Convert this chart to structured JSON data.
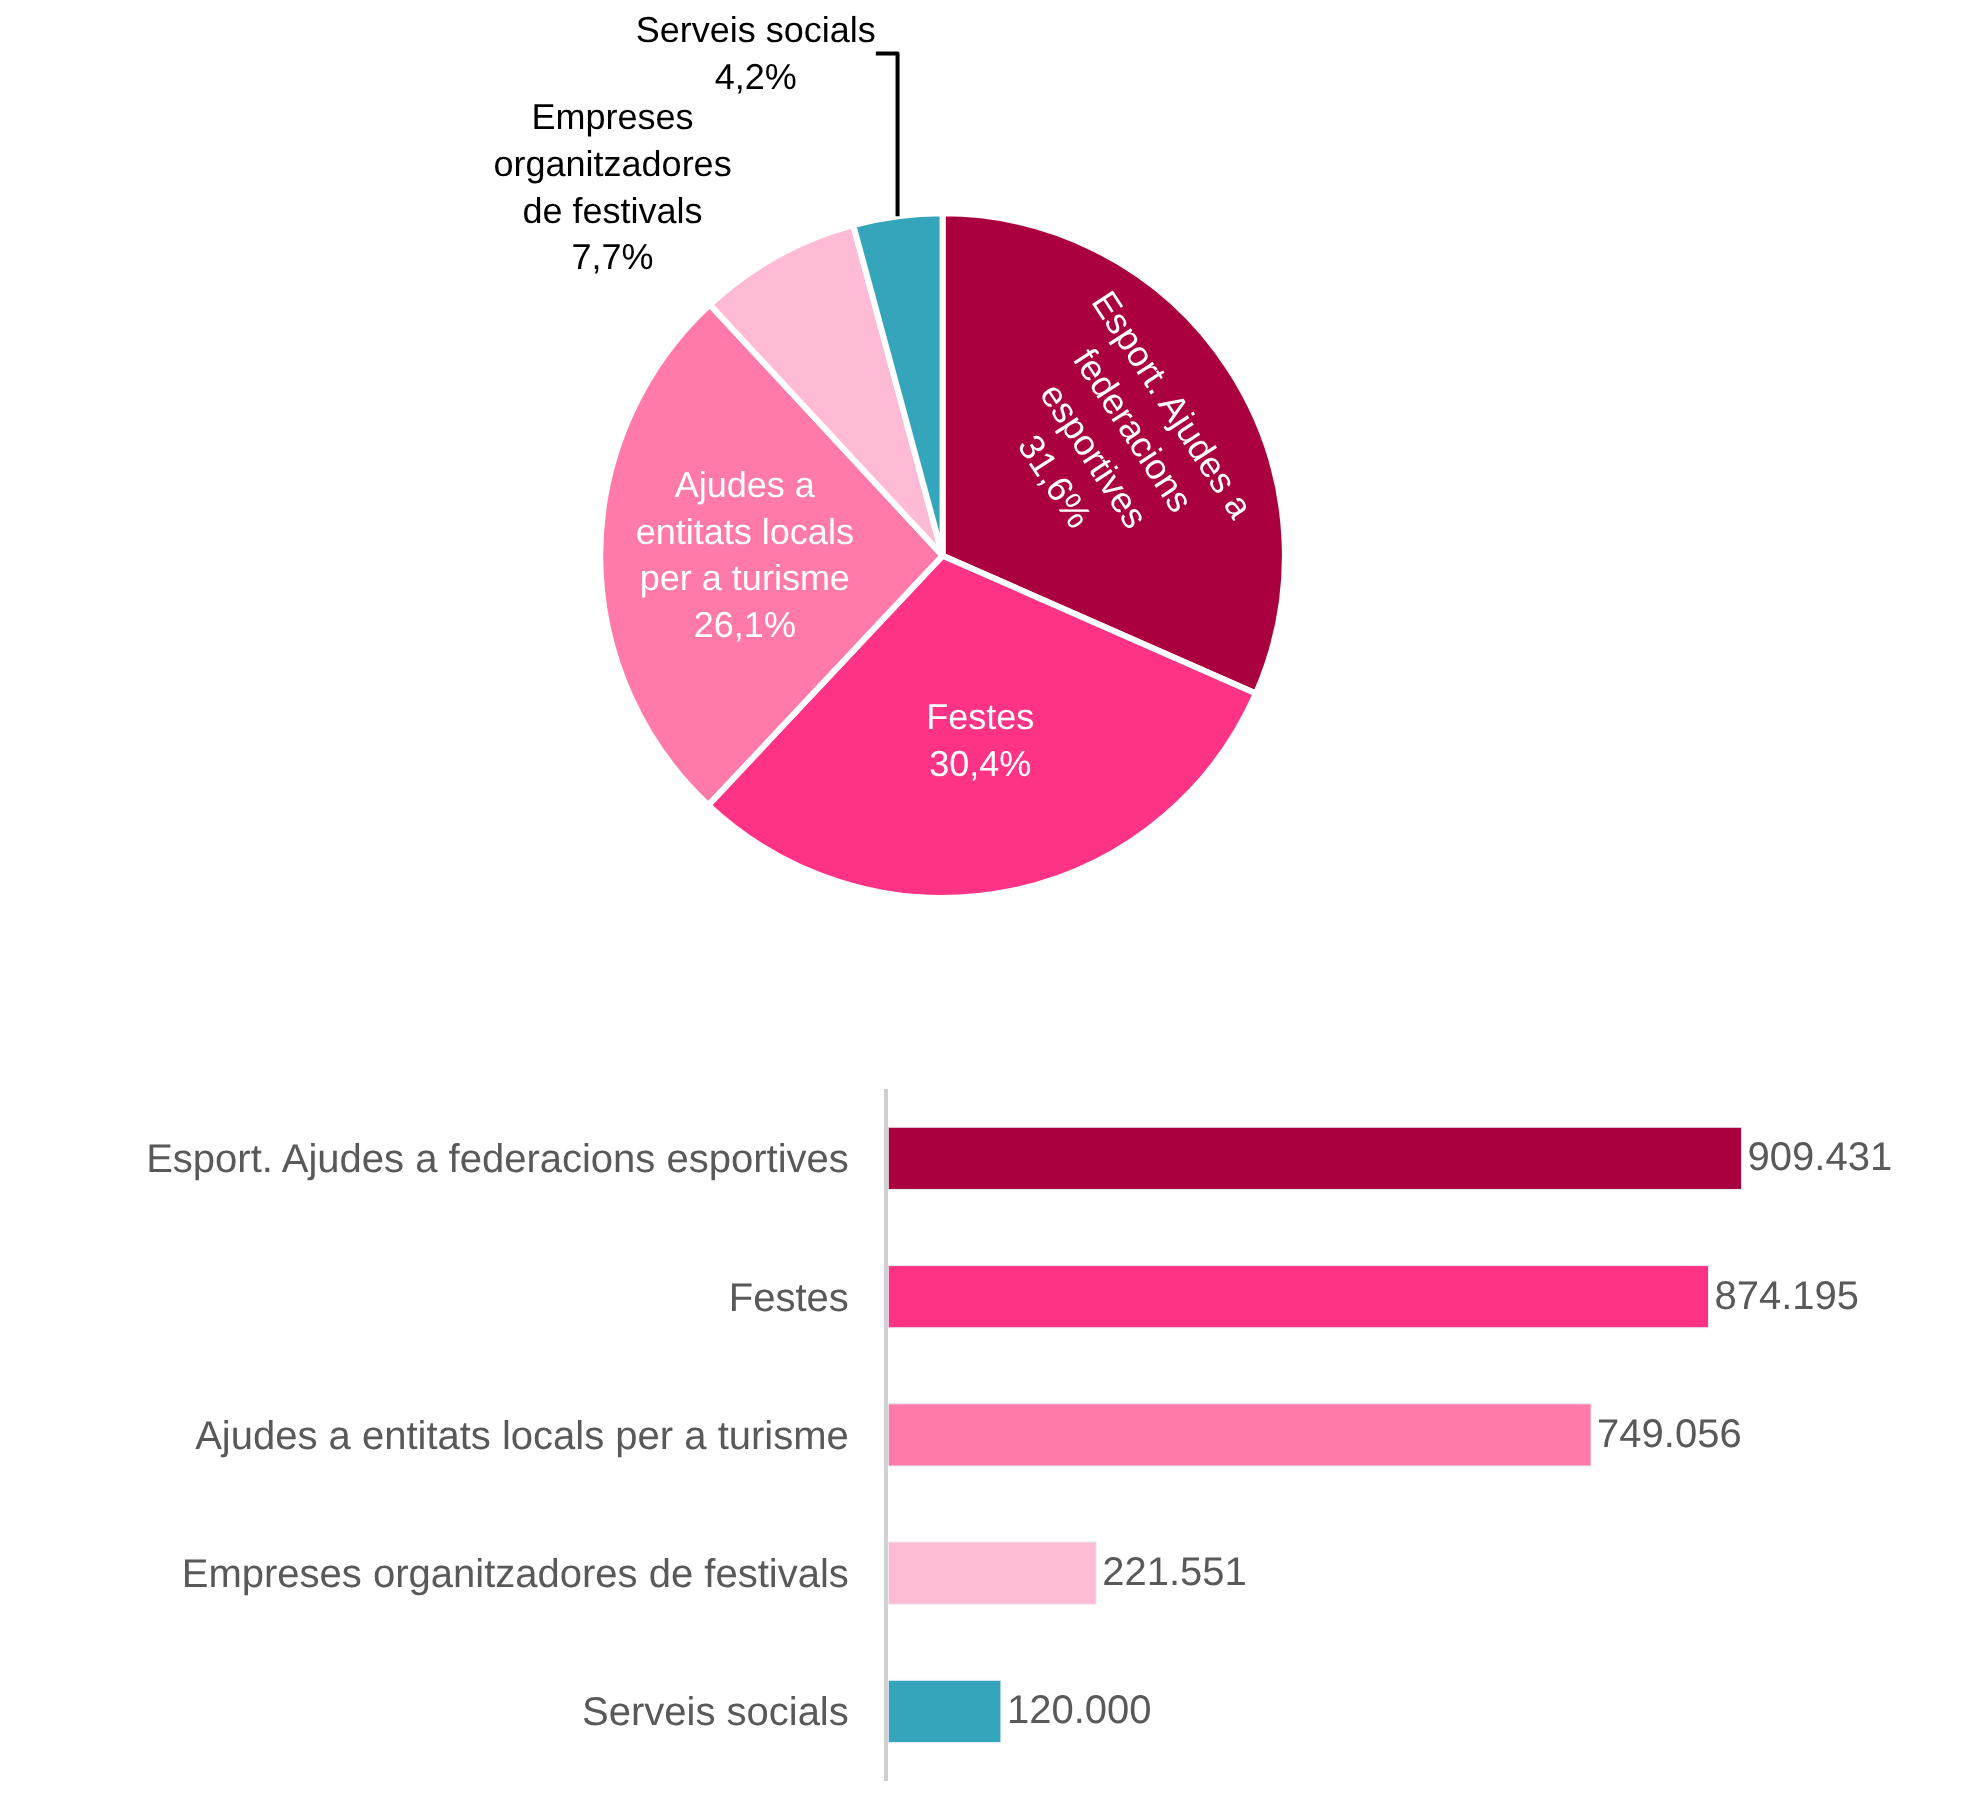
{
  "chart_data": [
    {
      "type": "pie",
      "categories": [
        "Esport. Ajudes a federacions esportives",
        "Festes",
        "Ajudes a entitats locals per a turisme",
        "Empreses organitzadores de festivals",
        "Serveis socials"
      ],
      "values": [
        31.6,
        30.4,
        26.1,
        7.7,
        4.2
      ],
      "value_labels": [
        "31,6%",
        "30,4%",
        "26,1%",
        "7,7%",
        "4,2%"
      ],
      "colors": [
        "#ab003f",
        "#ff3385",
        "#ff7aab",
        "#ffbad5",
        "#34a5bb"
      ]
    },
    {
      "type": "bar",
      "orientation": "horizontal",
      "categories": [
        "Esport. Ajudes a federacions esportives",
        "Festes",
        "Ajudes a entitats locals per a turisme",
        "Empreses organitzadores de festivals",
        "Serveis socials"
      ],
      "values": [
        909431,
        874195,
        749056,
        221551,
        120000
      ],
      "value_labels": [
        "909.431",
        "874.195",
        "749.056",
        "221.551",
        "120.000"
      ],
      "colors": [
        "#ab003f",
        "#ff3385",
        "#ff7aab",
        "#ffbad5",
        "#34a5bb"
      ]
    }
  ]
}
